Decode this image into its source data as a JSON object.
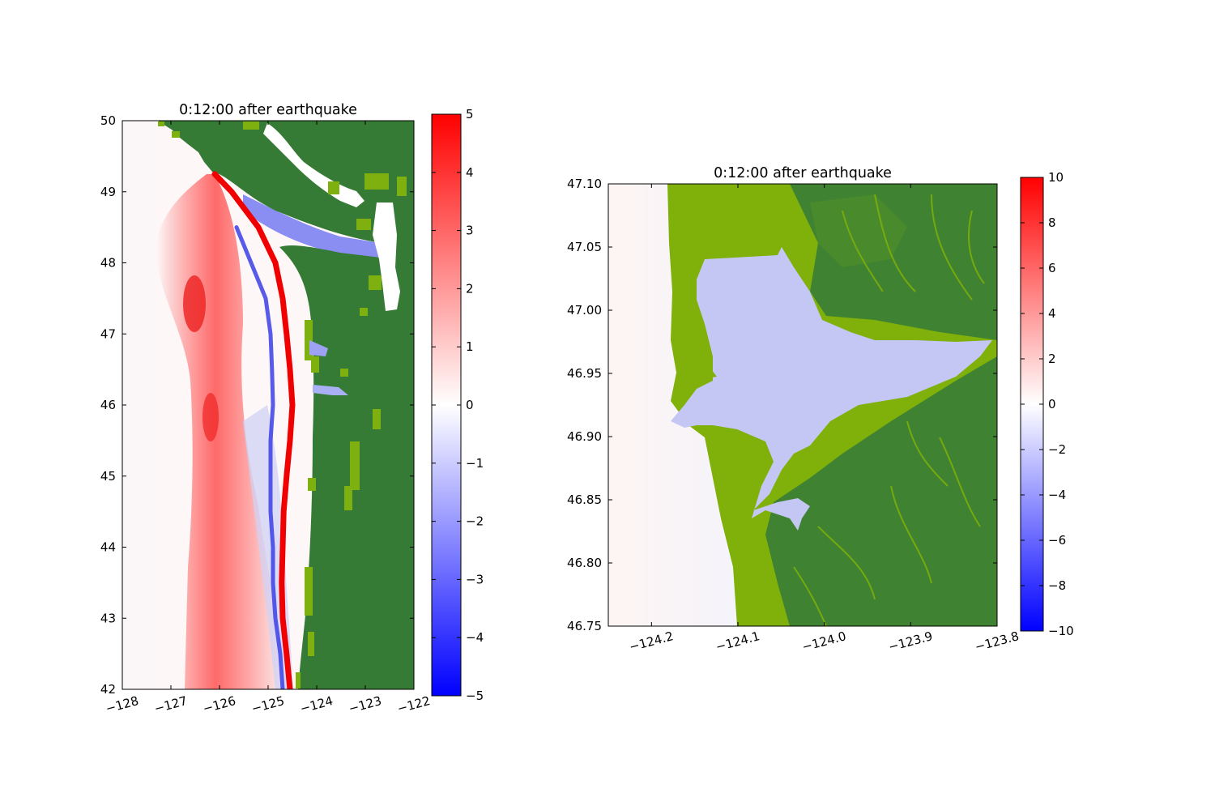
{
  "chart_data": [
    {
      "type": "heatmap",
      "title": "0:12:00 after earthquake",
      "xlabel": "",
      "ylabel": "",
      "xlim": [
        -128,
        -122
      ],
      "ylim": [
        42,
        50
      ],
      "x_ticks": [
        -128,
        -127,
        -126,
        -125,
        -124,
        -123,
        -122
      ],
      "x_tick_labels": [
        "−128",
        "−127",
        "−126",
        "−125",
        "−124",
        "−123",
        "−122"
      ],
      "y_ticks": [
        42,
        43,
        44,
        45,
        46,
        47,
        48,
        49,
        50
      ],
      "y_tick_labels": [
        "42",
        "43",
        "44",
        "45",
        "46",
        "47",
        "48",
        "49",
        "50"
      ],
      "colorbar": {
        "min": -5,
        "max": 5,
        "ticks": [
          -5,
          -4,
          -3,
          -2,
          -1,
          0,
          1,
          2,
          3,
          4,
          5
        ],
        "tick_labels": [
          "−5",
          "−4",
          "−3",
          "−2",
          "−1",
          "0",
          "1",
          "2",
          "3",
          "4",
          "5"
        ],
        "colormap": [
          "#0000ff",
          "#ffffff",
          "#ff0000"
        ]
      },
      "land_color": "#357a35",
      "shore_color": "#7eb010",
      "wave_fronts": {
        "crest_lon": [
          [
            49.25,
            -126.1
          ],
          [
            49.0,
            -125.75
          ],
          [
            48.5,
            -125.2
          ],
          [
            48.0,
            -124.85
          ],
          [
            47.5,
            -124.7
          ],
          [
            47.0,
            -124.62
          ],
          [
            46.5,
            -124.55
          ],
          [
            46.0,
            -124.5
          ],
          [
            45.5,
            -124.55
          ],
          [
            45.0,
            -124.62
          ],
          [
            44.5,
            -124.68
          ],
          [
            44.0,
            -124.7
          ],
          [
            43.5,
            -124.72
          ],
          [
            43.0,
            -124.7
          ],
          [
            42.5,
            -124.62
          ],
          [
            42.0,
            -124.55
          ]
        ],
        "trough_lon": [
          [
            48.5,
            -125.65
          ],
          [
            48.0,
            -125.35
          ],
          [
            47.5,
            -125.05
          ],
          [
            47.0,
            -124.95
          ],
          [
            46.5,
            -124.92
          ],
          [
            46.0,
            -124.9
          ],
          [
            45.5,
            -124.95
          ],
          [
            45.0,
            -124.95
          ],
          [
            44.5,
            -124.95
          ],
          [
            44.0,
            -124.9
          ],
          [
            43.5,
            -124.9
          ],
          [
            43.0,
            -124.85
          ],
          [
            42.5,
            -124.75
          ],
          [
            42.0,
            -124.7
          ]
        ],
        "offshore_lobe_lon": [
          [
            49.0,
            -126.4
          ],
          [
            48.0,
            -126.6
          ],
          [
            47.0,
            -126.5
          ],
          [
            46.0,
            -126.3
          ],
          [
            45.0,
            -126.35
          ],
          [
            44.0,
            -126.35
          ],
          [
            43.0,
            -126.45
          ],
          [
            42.0,
            -126.5
          ]
        ]
      }
    },
    {
      "type": "heatmap",
      "title": "0:12:00 after earthquake",
      "xlabel": "",
      "ylabel": "",
      "xlim": [
        -124.25,
        -123.8
      ],
      "ylim": [
        46.75,
        47.1
      ],
      "x_ticks": [
        -124.2,
        -124.1,
        -124.0,
        -123.9,
        -123.8
      ],
      "x_tick_labels": [
        "−124.2",
        "−124.1",
        "−124.0",
        "−123.9",
        "−123.8"
      ],
      "y_ticks": [
        46.75,
        46.8,
        46.85,
        46.9,
        46.95,
        47.0,
        47.05,
        47.1
      ],
      "y_tick_labels": [
        "46.75",
        "46.80",
        "46.85",
        "46.90",
        "46.95",
        "47.00",
        "47.05",
        "47.10"
      ],
      "colorbar": {
        "min": -10,
        "max": 10,
        "ticks": [
          -10,
          -8,
          -6,
          -4,
          -2,
          0,
          2,
          4,
          6,
          8,
          10
        ],
        "tick_labels": [
          "−10",
          "−8",
          "−6",
          "−4",
          "−2",
          "0",
          "2",
          "4",
          "6",
          "8",
          "10"
        ],
        "colormap": [
          "#0000ff",
          "#ffffff",
          "#ff0000"
        ]
      },
      "land_color": "#3a7f36",
      "shore_color": "#7fb10a",
      "bay_color": "#c4c6f4"
    }
  ]
}
